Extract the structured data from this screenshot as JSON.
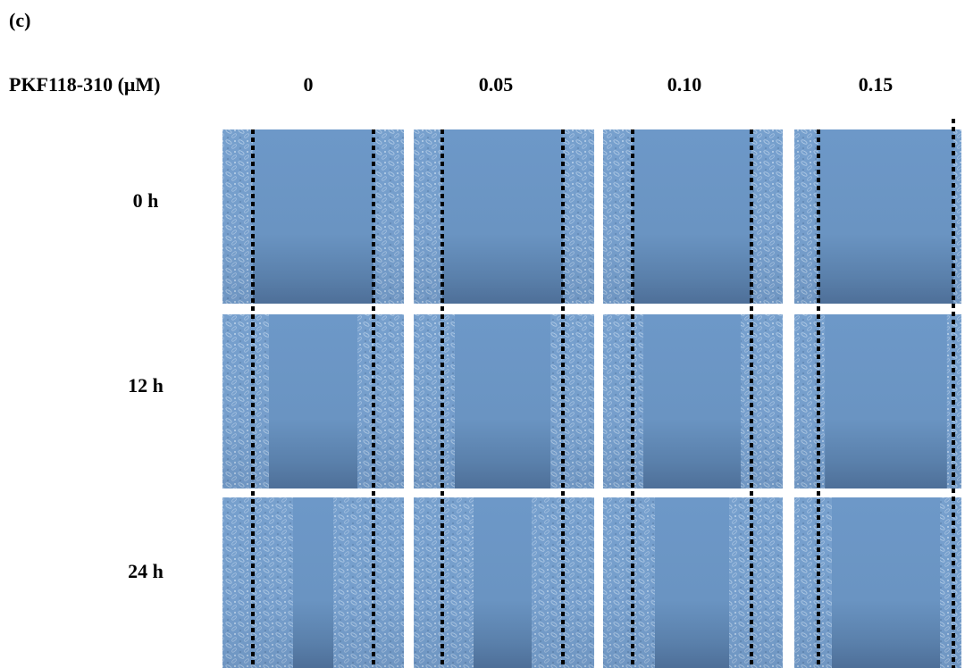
{
  "panel_label": "(c)",
  "header": {
    "title": "PKF118-310 (μM)",
    "columns": [
      "0",
      "0.05",
      "0.10",
      "0.15"
    ]
  },
  "rows": [
    "0 h",
    "12 h",
    "24 h"
  ]
}
